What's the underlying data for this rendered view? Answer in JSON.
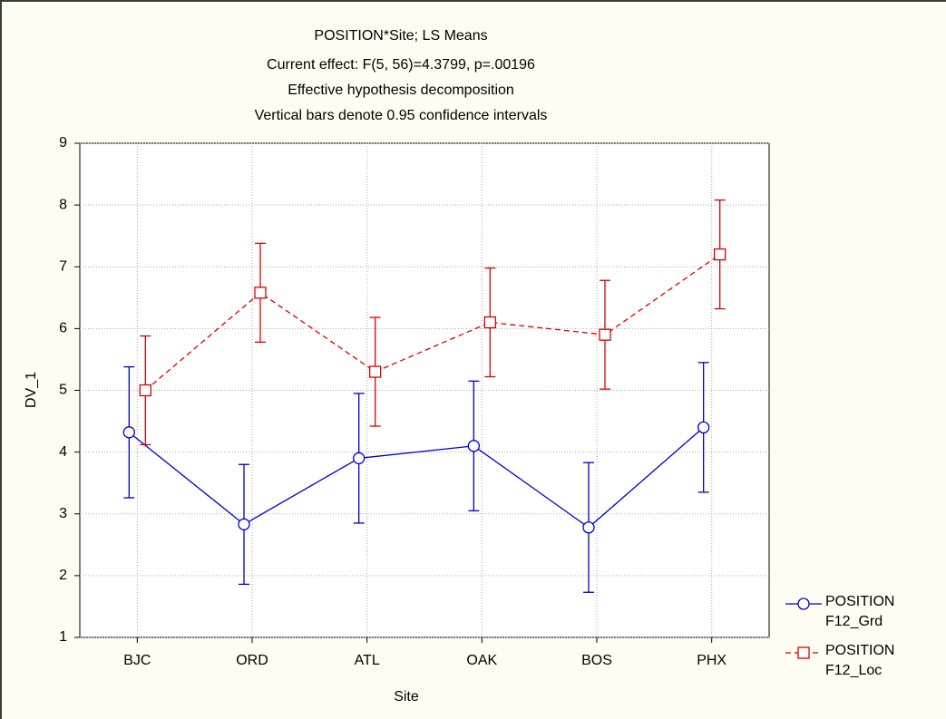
{
  "chart_data": {
    "type": "line",
    "title": "POSITION*Site; LS Means",
    "subtitle": [
      "Current effect: F(5, 56)=4.3799, p=.00196",
      "Effective hypothesis decomposition",
      "Vertical bars denote 0.95 confidence intervals"
    ],
    "xlabel": "Site",
    "ylabel": "DV_1",
    "categories": [
      "BJC",
      "ORD",
      "ATL",
      "OAK",
      "BOS",
      "PHX"
    ],
    "ylim": [
      1,
      9
    ],
    "yticks": [
      1,
      2,
      3,
      4,
      5,
      6,
      7,
      8,
      9
    ],
    "grid": true,
    "legend": "right",
    "series": [
      {
        "name": "POSITION F12_Grd",
        "color": "#0000cc",
        "marker": "circle",
        "dash": false,
        "values": [
          4.32,
          2.83,
          3.9,
          4.1,
          2.78,
          4.4
        ],
        "errors": [
          1.06,
          0.97,
          1.05,
          1.05,
          1.05,
          1.05
        ]
      },
      {
        "name": "POSITION F12_Loc",
        "color": "#dd0000",
        "marker": "square",
        "dash": true,
        "values": [
          5.0,
          6.58,
          5.3,
          6.1,
          5.9,
          7.2
        ],
        "errors": [
          0.88,
          0.8,
          0.88,
          0.88,
          0.88,
          0.88
        ]
      }
    ]
  }
}
